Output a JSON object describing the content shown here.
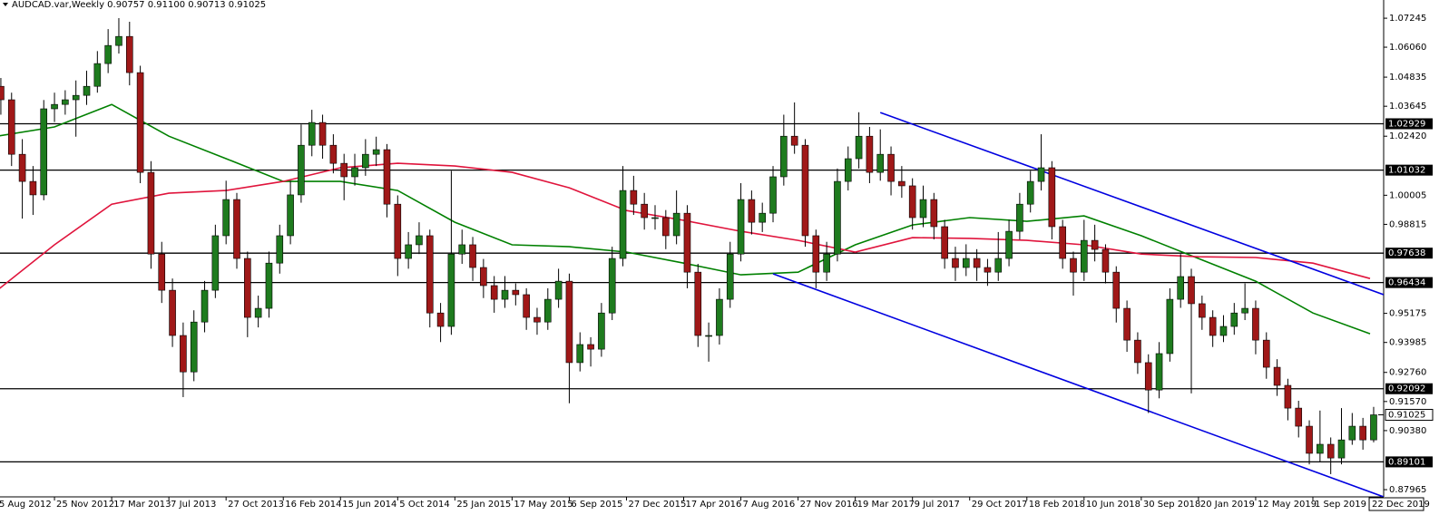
{
  "chart_data": {
    "type": "candlestick",
    "title": "AUDCAD.var,Weekly  0.90757 0.91100 0.90713 0.91025",
    "xlim": [
      0.76,
      387.8
    ],
    "ylim": [
      0.8767,
      1.0799
    ],
    "xticks": [
      {
        "value": 0,
        "label": "5 Aug 2012"
      },
      {
        "value": 16,
        "label": "25 Nov 2012"
      },
      {
        "value": 32,
        "label": "17 Mar 2013"
      },
      {
        "value": 48,
        "label": "7 Jul 2013"
      },
      {
        "value": 64,
        "label": "27 Oct 2013"
      },
      {
        "value": 80,
        "label": "16 Feb 2014"
      },
      {
        "value": 96,
        "label": "15 Jun 2014"
      },
      {
        "value": 112,
        "label": "5 Oct 2014"
      },
      {
        "value": 128,
        "label": "25 Jan 2015"
      },
      {
        "value": 144,
        "label": "17 May 2015"
      },
      {
        "value": 160,
        "label": "6 Sep 2015"
      },
      {
        "value": 176,
        "label": "27 Dec 2015"
      },
      {
        "value": 192,
        "label": "17 Apr 2016"
      },
      {
        "value": 208,
        "label": "7 Aug 2016"
      },
      {
        "value": 224,
        "label": "27 Nov 2016"
      },
      {
        "value": 240,
        "label": "19 Mar 2017"
      },
      {
        "value": 256,
        "label": "9 Jul 2017"
      },
      {
        "value": 272,
        "label": "29 Oct 2017"
      },
      {
        "value": 288,
        "label": "18 Feb 2018"
      },
      {
        "value": 304,
        "label": "10 Jun 2018"
      },
      {
        "value": 320,
        "label": "30 Sep 2018"
      },
      {
        "value": 336,
        "label": "20 Jan 2019"
      },
      {
        "value": 352,
        "label": "12 May 2019"
      },
      {
        "value": 368,
        "label": "1 Sep 2019"
      },
      {
        "value": 384,
        "label": "22 Dec 2019"
      }
    ],
    "yticks": [
      1.07245,
      {
        "value": 1.0606,
        "label": "1.06060"
      },
      1.04835,
      1.03645,
      {
        "value": 1.0242,
        "label": "1.02420"
      },
      1.00005,
      0.98815,
      0.95175,
      0.93985,
      {
        "value": 0.9276,
        "label": "0.92760"
      },
      {
        "value": 0.9157,
        "label": "0.91570"
      },
      {
        "value": 0.9038,
        "label": "0.90380"
      },
      0.87965
    ],
    "levels": [
      1.02929,
      1.01032,
      0.97638,
      0.96434,
      0.92092,
      0.89101
    ],
    "last_price": 0.91025,
    "up_color": "#1e7b1e",
    "down_color": "#a01818",
    "x": [
      1,
      4,
      7,
      10,
      13,
      16,
      19,
      22,
      25,
      28,
      31,
      34,
      37,
      40,
      43,
      46,
      49,
      52,
      55,
      58,
      61,
      64,
      67,
      70,
      73,
      76,
      79,
      82,
      85,
      88,
      91,
      94,
      97,
      100,
      103,
      106,
      109,
      112,
      115,
      118,
      121,
      124,
      127,
      130,
      133,
      136,
      139,
      142,
      145,
      148,
      151,
      154,
      157,
      160,
      163,
      166,
      169,
      172,
      175,
      178,
      181,
      184,
      187,
      190,
      193,
      196,
      199,
      202,
      205,
      208,
      211,
      214,
      217,
      220,
      223,
      226,
      229,
      232,
      235,
      238,
      241,
      244,
      247,
      250,
      253,
      256,
      259,
      262,
      265,
      268,
      271,
      274,
      277,
      280,
      283,
      286,
      289,
      292,
      295,
      298,
      301,
      304,
      307,
      310,
      313,
      316,
      319,
      322,
      325,
      328,
      331,
      334,
      337,
      340,
      343,
      346,
      349,
      352,
      355,
      358,
      361,
      364,
      367,
      370,
      373,
      376,
      379,
      382,
      385
    ],
    "ohlc": [
      [
        1.0446,
        1.048,
        1.033,
        1.0391
      ],
      [
        1.0391,
        1.042,
        1.012,
        1.0168
      ],
      [
        1.0168,
        1.023,
        0.9905,
        1.0057
      ],
      [
        1.0057,
        1.012,
        0.992,
        1.0002
      ],
      [
        1.0002,
        1.039,
        0.998,
        1.0354
      ],
      [
        1.0354,
        1.042,
        1.03,
        1.0372
      ],
      [
        1.0372,
        1.043,
        1.033,
        1.0391
      ],
      [
        1.0391,
        1.047,
        1.024,
        1.0409
      ],
      [
        1.0409,
        1.051,
        1.037,
        1.0446
      ],
      [
        1.0446,
        1.059,
        1.042,
        1.0539
      ],
      [
        1.0539,
        1.068,
        1.05,
        1.0613
      ],
      [
        1.0613,
        1.0725,
        1.058,
        1.065
      ],
      [
        1.065,
        1.071,
        1.045,
        1.0502
      ],
      [
        1.0502,
        1.053,
        1.005,
        1.0094
      ],
      [
        1.0094,
        1.014,
        0.97,
        0.976
      ],
      [
        0.976,
        0.981,
        0.956,
        0.9612
      ],
      [
        0.9612,
        0.966,
        0.938,
        0.9427
      ],
      [
        0.9427,
        0.948,
        0.9175,
        0.9278
      ],
      [
        0.9278,
        0.953,
        0.924,
        0.9482
      ],
      [
        0.9482,
        0.965,
        0.944,
        0.9612
      ],
      [
        0.9612,
        0.988,
        0.958,
        0.9835
      ],
      [
        0.9835,
        1.006,
        0.98,
        0.9983
      ],
      [
        0.9983,
        1.001,
        0.97,
        0.9742
      ],
      [
        0.9742,
        0.977,
        0.942,
        0.9501
      ],
      [
        0.9501,
        0.959,
        0.946,
        0.9538
      ],
      [
        0.9538,
        0.977,
        0.95,
        0.9723
      ],
      [
        0.9723,
        0.988,
        0.968,
        0.9835
      ],
      [
        0.9835,
        1.006,
        0.98,
        1.0002
      ],
      [
        1.0002,
        1.029,
        0.997,
        1.0205
      ],
      [
        1.0205,
        1.035,
        1.016,
        1.0298
      ],
      [
        1.0298,
        1.033,
        1.015,
        1.0205
      ],
      [
        1.0205,
        1.025,
        1.009,
        1.0131
      ],
      [
        1.0131,
        1.017,
        0.998,
        1.0076
      ],
      [
        1.0076,
        1.017,
        1.004,
        1.0113
      ],
      [
        1.0113,
        1.023,
        1.008,
        1.0168
      ],
      [
        1.0168,
        1.024,
        1.012,
        1.0187
      ],
      [
        1.0187,
        1.021,
        0.991,
        0.9964
      ],
      [
        0.9964,
        1.0,
        0.967,
        0.9742
      ],
      [
        0.9742,
        0.985,
        0.97,
        0.9798
      ],
      [
        0.9798,
        0.989,
        0.976,
        0.9835
      ],
      [
        0.9835,
        0.986,
        0.946,
        0.9519
      ],
      [
        0.9519,
        0.956,
        0.94,
        0.9464
      ],
      [
        0.9464,
        1.01,
        0.943,
        0.976
      ],
      [
        0.976,
        0.986,
        0.972,
        0.9798
      ],
      [
        0.9798,
        0.983,
        0.965,
        0.9705
      ],
      [
        0.9705,
        0.974,
        0.958,
        0.9631
      ],
      [
        0.9631,
        0.967,
        0.952,
        0.9575
      ],
      [
        0.9575,
        0.967,
        0.954,
        0.9612
      ],
      [
        0.9612,
        0.964,
        0.955,
        0.9594
      ],
      [
        0.9594,
        0.962,
        0.945,
        0.9501
      ],
      [
        0.9501,
        0.954,
        0.943,
        0.9482
      ],
      [
        0.9482,
        0.962,
        0.945,
        0.9575
      ],
      [
        0.9575,
        0.97,
        0.954,
        0.9649
      ],
      [
        0.9649,
        0.968,
        0.915,
        0.9316
      ],
      [
        0.9316,
        0.944,
        0.928,
        0.939
      ],
      [
        0.939,
        0.942,
        0.93,
        0.9371
      ],
      [
        0.9371,
        0.956,
        0.934,
        0.9519
      ],
      [
        0.9519,
        0.979,
        0.949,
        0.9742
      ],
      [
        0.9742,
        1.012,
        0.971,
        1.002
      ],
      [
        1.002,
        1.008,
        0.992,
        0.9964
      ],
      [
        0.9964,
        1.001,
        0.986,
        0.9909
      ],
      [
        0.9909,
        0.996,
        0.986,
        0.9909
      ],
      [
        0.9909,
        0.994,
        0.978,
        0.9835
      ],
      [
        0.9835,
        1.002,
        0.98,
        0.9927
      ],
      [
        0.9927,
        0.996,
        0.962,
        0.9686
      ],
      [
        0.9686,
        0.972,
        0.938,
        0.9427
      ],
      [
        0.9427,
        0.948,
        0.932,
        0.9427
      ],
      [
        0.9427,
        0.962,
        0.939,
        0.9575
      ],
      [
        0.9575,
        0.981,
        0.954,
        0.976
      ],
      [
        0.976,
        1.005,
        0.973,
        0.9983
      ],
      [
        0.9983,
        1.002,
        0.984,
        0.989
      ],
      [
        0.989,
        0.997,
        0.985,
        0.9927
      ],
      [
        0.9927,
        1.012,
        0.989,
        1.0076
      ],
      [
        1.0076,
        1.033,
        1.004,
        1.0242
      ],
      [
        1.0242,
        1.038,
        1.017,
        1.0205
      ],
      [
        1.0205,
        1.023,
        0.979,
        0.9835
      ],
      [
        0.9835,
        0.986,
        0.962,
        0.9686
      ],
      [
        0.9686,
        0.981,
        0.965,
        0.976
      ],
      [
        0.976,
        1.011,
        0.973,
        1.0057
      ],
      [
        1.0057,
        1.02,
        1.002,
        1.015
      ],
      [
        1.015,
        1.034,
        1.011,
        1.0242
      ],
      [
        1.0242,
        1.028,
        1.005,
        1.0094
      ],
      [
        1.0094,
        1.027,
        1.006,
        1.0168
      ],
      [
        1.0168,
        1.02,
        1.0,
        1.0057
      ],
      [
        1.0057,
        1.012,
        0.999,
        1.0039
      ],
      [
        1.0039,
        1.007,
        0.986,
        0.9909
      ],
      [
        0.9909,
        1.004,
        0.987,
        0.9983
      ],
      [
        0.9983,
        1.001,
        0.982,
        0.9872
      ],
      [
        0.9872,
        0.99,
        0.97,
        0.9742
      ],
      [
        0.9742,
        0.979,
        0.965,
        0.9705
      ],
      [
        0.9705,
        0.98,
        0.967,
        0.9742
      ],
      [
        0.9742,
        0.978,
        0.965,
        0.9705
      ],
      [
        0.9705,
        0.974,
        0.963,
        0.9686
      ],
      [
        0.9686,
        0.985,
        0.965,
        0.9742
      ],
      [
        0.9742,
        0.99,
        0.971,
        0.9853
      ],
      [
        0.9853,
        1.001,
        0.982,
        0.9964
      ],
      [
        0.9964,
        1.01,
        0.993,
        1.0057
      ],
      [
        1.0057,
        1.025,
        1.002,
        1.0113
      ],
      [
        1.0113,
        1.014,
        0.982,
        0.9872
      ],
      [
        0.9872,
        0.99,
        0.97,
        0.9742
      ],
      [
        0.9742,
        0.977,
        0.959,
        0.9686
      ],
      [
        0.9686,
        0.99,
        0.965,
        0.9816
      ],
      [
        0.9816,
        0.988,
        0.973,
        0.9779
      ],
      [
        0.9779,
        0.98,
        0.964,
        0.9686
      ],
      [
        0.9686,
        0.971,
        0.948,
        0.9538
      ],
      [
        0.9538,
        0.957,
        0.936,
        0.9408
      ],
      [
        0.9408,
        0.944,
        0.927,
        0.9316
      ],
      [
        0.9316,
        0.935,
        0.911,
        0.9204
      ],
      [
        0.9204,
        0.94,
        0.917,
        0.9353
      ],
      [
        0.9353,
        0.962,
        0.932,
        0.9575
      ],
      [
        0.9575,
        0.976,
        0.954,
        0.9668
      ],
      [
        0.9668,
        0.97,
        0.919,
        0.9557
      ],
      [
        0.9557,
        0.959,
        0.945,
        0.9501
      ],
      [
        0.9501,
        0.953,
        0.938,
        0.9427
      ],
      [
        0.9427,
        0.951,
        0.94,
        0.9464
      ],
      [
        0.9464,
        0.956,
        0.943,
        0.9519
      ],
      [
        0.9519,
        0.964,
        0.949,
        0.9538
      ],
      [
        0.9538,
        0.957,
        0.935,
        0.9408
      ],
      [
        0.9408,
        0.944,
        0.925,
        0.9297
      ],
      [
        0.9297,
        0.933,
        0.918,
        0.9223
      ],
      [
        0.9223,
        0.925,
        0.908,
        0.913
      ],
      [
        0.913,
        0.916,
        0.901,
        0.9056
      ],
      [
        0.9056,
        0.908,
        0.89,
        0.8945
      ],
      [
        0.8945,
        0.912,
        0.891,
        0.8982
      ],
      [
        0.8982,
        0.901,
        0.886,
        0.8926
      ],
      [
        0.8926,
        0.913,
        0.89,
        0.9
      ],
      [
        0.9,
        0.911,
        0.898,
        0.9056
      ],
      [
        0.9056,
        0.909,
        0.896,
        0.9
      ],
      [
        0.9,
        0.9135,
        0.899,
        0.91025
      ]
    ],
    "moving_averages": [
      {
        "color": "#008000",
        "x": [
          0,
          16,
          32,
          48,
          64,
          80,
          96,
          112,
          128,
          144,
          160,
          176,
          192,
          208,
          224,
          240,
          256,
          272,
          288,
          304,
          320,
          336,
          352,
          368,
          384
        ],
        "values": [
          1.0242,
          1.028,
          1.0372,
          1.0242,
          1.015,
          1.0057,
          1.0057,
          1.002,
          0.989,
          0.9798,
          0.979,
          0.9768,
          0.9723,
          0.9675,
          0.9686,
          0.9798,
          0.9879,
          0.9909,
          0.9894,
          0.9916,
          0.9835,
          0.9742,
          0.9649,
          0.9519,
          0.9434
        ]
      },
      {
        "color": "#e0143c",
        "x": [
          0,
          16,
          32,
          48,
          64,
          80,
          96,
          112,
          128,
          144,
          160,
          176,
          192,
          208,
          224,
          240,
          256,
          272,
          288,
          304,
          320,
          336,
          352,
          368,
          384
        ],
        "values": [
          0.9612,
          0.9798,
          0.9964,
          1.0009,
          1.002,
          1.0057,
          1.0113,
          1.0131,
          1.012,
          1.0094,
          1.0031,
          0.9938,
          0.9898,
          0.9853,
          0.9816,
          0.9768,
          0.9827,
          0.9824,
          0.9816,
          0.9798,
          0.976,
          0.9749,
          0.9746,
          0.9723,
          0.966
        ]
      }
    ],
    "trendlines": [
      {
        "color": "#0000e0",
        "x": [
          247,
          387.8
        ],
        "y": [
          1.0339,
          0.9594
        ]
      },
      {
        "color": "#0000e0",
        "x": [
          217,
          387.8
        ],
        "y": [
          0.9679,
          0.8767
        ]
      }
    ]
  }
}
